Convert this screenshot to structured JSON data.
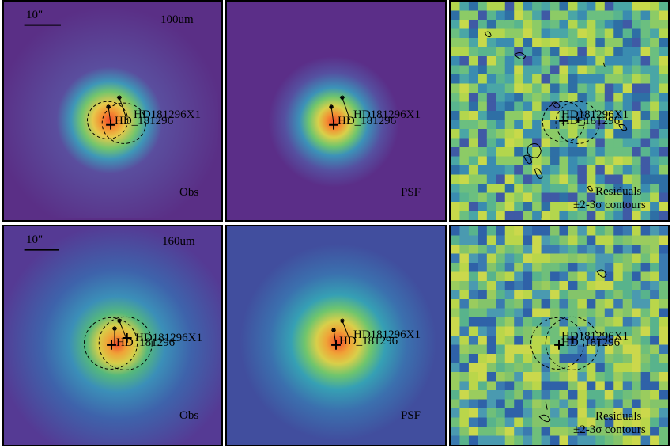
{
  "panels": [
    {
      "id": "p1",
      "band": "100um",
      "scale_label": "10\"",
      "corner_label": "Obs",
      "source": "HD181296X1",
      "target": "HD_181296"
    },
    {
      "id": "p2",
      "band": "",
      "scale_label": "",
      "corner_label": "PSF",
      "source": "HD181296X1",
      "target": "HD_181296"
    },
    {
      "id": "p3",
      "band": "",
      "scale_label": "",
      "corner_label": "Residuals",
      "corner_label2": "±2-3σ contours",
      "source": "HD181296X1",
      "target": "HD_181296"
    },
    {
      "id": "p4",
      "band": "160um",
      "scale_label": "10\"",
      "corner_label": "Obs",
      "source": "HD181296X1",
      "target": "HD_181296"
    },
    {
      "id": "p5",
      "band": "",
      "scale_label": "",
      "corner_label": "PSF",
      "source": "HD181296X1",
      "target": "HD_181296"
    },
    {
      "id": "p6",
      "band": "",
      "scale_label": "",
      "corner_label": "Residuals",
      "corner_label2": "±2-3σ contours",
      "source": "HD181296X1",
      "target": "HD_181296"
    }
  ],
  "colors": {
    "background_100_obs": "#5a2f86",
    "background_100_psf": "#5b2e88",
    "background_160_obs": "#4b4fa2",
    "background_160_psf": "#414e9e",
    "residual_low": "#3b8ab0",
    "residual_high": "#b7d84d",
    "peak": "#e9402f",
    "contour": "#000000",
    "frame": "#000000"
  }
}
